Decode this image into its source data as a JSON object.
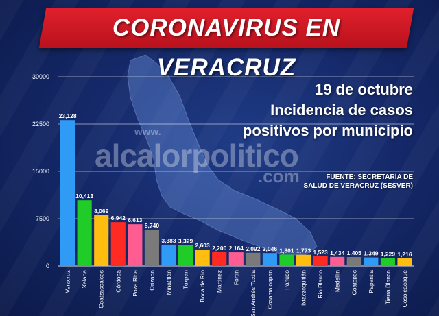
{
  "header": {
    "title": "CORONAVIRUS EN VERACRUZ",
    "date": "19 de octubre",
    "subtitle_line1": "Incidencia de casos",
    "subtitle_line2": "positivos por municipio",
    "source_line1": "FUENTE: SECRETARÍA DE",
    "source_line2": "SALUD DE VERACRUZ (SESVER)"
  },
  "watermark": {
    "prefix": "www.",
    "name": "alcalorpolitico",
    "suffix": ".com"
  },
  "colors": {
    "banner_red": "#d31824",
    "background_navy": "#15296a"
  },
  "chart_data": {
    "type": "bar",
    "title": "Incidencia de casos positivos por municipio",
    "xlabel": "",
    "ylabel": "",
    "ylim": [
      0,
      30000
    ],
    "yticks": [
      0,
      7500,
      15000,
      22500,
      30000
    ],
    "ytick_labels": [
      "0",
      "7500",
      "15000",
      "22500",
      "30000"
    ],
    "grid": true,
    "legend": "none",
    "categories": [
      "Veracruz",
      "Xalapa",
      "Coatzacoalcos",
      "Córdoba",
      "Poza Rica",
      "Orizaba",
      "Minatitlán",
      "Tuxpan",
      "Boca de Río",
      "Martínez",
      "Fortín",
      "San Andrés Tuxtla",
      "Cosamaloapan",
      "Pánuco",
      "Ixtaczoquitlán",
      "Río Blanco",
      "Medellín",
      "Coatepec",
      "Papantla",
      "Tierra Blanca",
      "Cosoleacaque"
    ],
    "values": [
      23128,
      10413,
      8069,
      6942,
      6613,
      5740,
      3383,
      3329,
      2603,
      2200,
      2164,
      2092,
      2046,
      1801,
      1773,
      1523,
      1434,
      1405,
      1349,
      1229,
      1216
    ],
    "value_labels": [
      "23,128",
      "10,413",
      "8,069",
      "6,942",
      "6,613",
      "5,740",
      "3,383",
      "3,329",
      "2,603",
      "2,200",
      "2,164",
      "2,092",
      "2,046",
      "1,801",
      "1,773",
      "1,523",
      "1,434",
      "1,405",
      "1,349",
      "1,229",
      "1,216"
    ],
    "colors": [
      "#2f9bf4",
      "#1fcc28",
      "#ffbd10",
      "#ff2a22",
      "#ff5d92",
      "#7a7a7a",
      "#2f9bf4",
      "#1fcc28",
      "#ffbd10",
      "#ff2a22",
      "#ff5d92",
      "#7a7a7a",
      "#2f9bf4",
      "#1fcc28",
      "#ffbd10",
      "#ff2a22",
      "#ff5d92",
      "#7a7a7a",
      "#2f9bf4",
      "#1fcc28",
      "#ffbd10"
    ]
  }
}
